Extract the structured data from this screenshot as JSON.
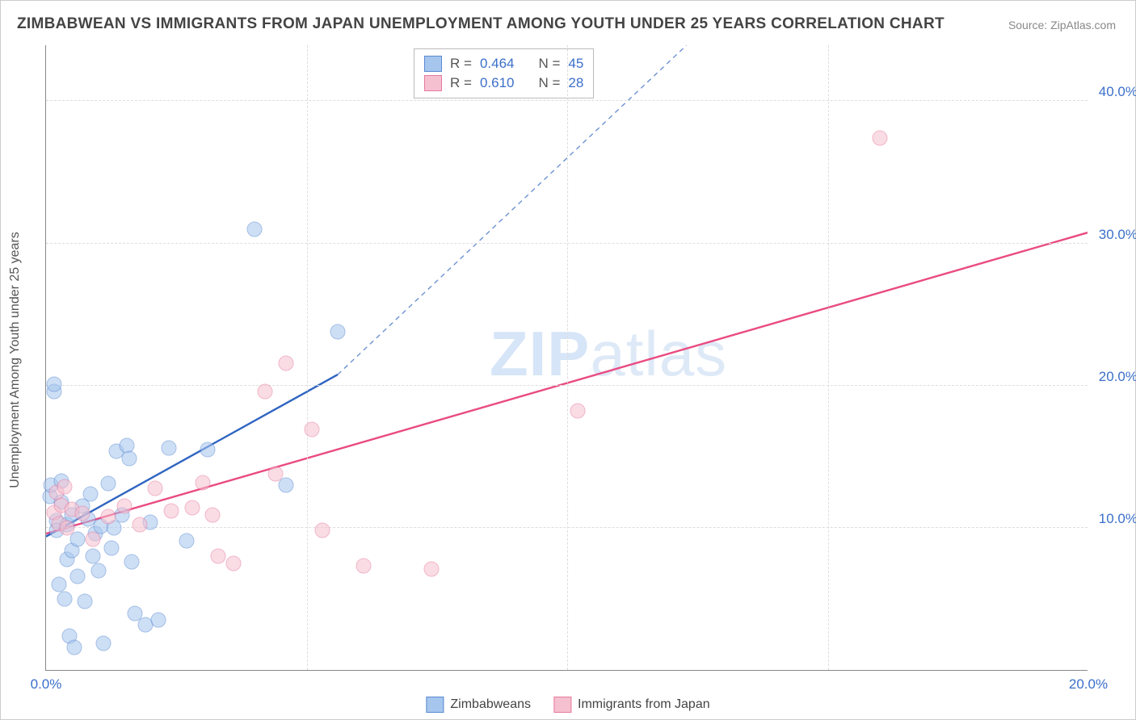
{
  "title": "ZIMBABWEAN VS IMMIGRANTS FROM JAPAN UNEMPLOYMENT AMONG YOUTH UNDER 25 YEARS CORRELATION CHART",
  "source_label": "Source: ZipAtlas.com",
  "y_axis_title": "Unemployment Among Youth under 25 years",
  "watermark": {
    "bold": "ZIP",
    "light": "atlas"
  },
  "chart": {
    "type": "scatter",
    "xlim": [
      0,
      20
    ],
    "ylim": [
      0,
      44
    ],
    "x_ticks": [
      {
        "v": 0,
        "l": "0.0%"
      },
      {
        "v": 20,
        "l": "20.0%"
      }
    ],
    "y_ticks": [
      {
        "v": 10,
        "l": "10.0%"
      },
      {
        "v": 20,
        "l": "20.0%"
      },
      {
        "v": 30,
        "l": "30.0%"
      },
      {
        "v": 40,
        "l": "40.0%"
      }
    ],
    "x_minor_gridlines": [
      5,
      10,
      15
    ],
    "background_color": "#ffffff",
    "grid_color": "#dddddd",
    "axis_color": "#888888",
    "tick_label_color": "#3b6fc9",
    "tick_fontsize": 17,
    "marker_radius": 9.5,
    "marker_opacity": 0.55,
    "series": [
      {
        "name": "Zimbabweans",
        "fill": "#a6c6ee",
        "stroke": "#5989d0",
        "R": "0.464",
        "N": "45",
        "trend": {
          "x1": 0,
          "y1": 9.4,
          "x2": 5.6,
          "y2": 20.8,
          "x2_ext": 12.3,
          "y2_ext": 44,
          "color": "#2f64c0",
          "width": 2.4
        },
        "points": [
          [
            0.08,
            12.2
          ],
          [
            0.1,
            13.0
          ],
          [
            0.15,
            19.6
          ],
          [
            0.15,
            20.1
          ],
          [
            0.2,
            10.5
          ],
          [
            0.2,
            9.8
          ],
          [
            0.25,
            6.0
          ],
          [
            0.3,
            11.8
          ],
          [
            0.3,
            13.3
          ],
          [
            0.35,
            5.0
          ],
          [
            0.4,
            10.2
          ],
          [
            0.4,
            7.8
          ],
          [
            0.45,
            2.4
          ],
          [
            0.5,
            8.4
          ],
          [
            0.5,
            10.9
          ],
          [
            0.55,
            1.6
          ],
          [
            0.6,
            9.2
          ],
          [
            0.6,
            6.6
          ],
          [
            0.7,
            11.5
          ],
          [
            0.75,
            4.8
          ],
          [
            0.8,
            10.6
          ],
          [
            0.85,
            12.4
          ],
          [
            0.9,
            8.0
          ],
          [
            0.95,
            9.6
          ],
          [
            1.0,
            7.0
          ],
          [
            1.05,
            10.1
          ],
          [
            1.1,
            1.9
          ],
          [
            1.2,
            13.1
          ],
          [
            1.25,
            8.6
          ],
          [
            1.3,
            10.0
          ],
          [
            1.35,
            15.4
          ],
          [
            1.45,
            10.9
          ],
          [
            1.55,
            15.8
          ],
          [
            1.6,
            14.9
          ],
          [
            1.65,
            7.6
          ],
          [
            1.7,
            4.0
          ],
          [
            1.9,
            3.2
          ],
          [
            2.0,
            10.4
          ],
          [
            2.15,
            3.5
          ],
          [
            2.35,
            15.6
          ],
          [
            2.7,
            9.1
          ],
          [
            3.1,
            15.5
          ],
          [
            4.0,
            31.0
          ],
          [
            4.6,
            13.0
          ],
          [
            5.6,
            23.8
          ]
        ]
      },
      {
        "name": "Immigrants from Japan",
        "fill": "#f5c0cf",
        "stroke": "#e77aa0",
        "R": "0.610",
        "N": "28",
        "trend": {
          "x1": 0,
          "y1": 9.6,
          "x2": 20,
          "y2": 30.8,
          "color": "#e94b82",
          "width": 2.4
        },
        "points": [
          [
            0.15,
            11.1
          ],
          [
            0.2,
            12.5
          ],
          [
            0.25,
            10.3
          ],
          [
            0.3,
            11.6
          ],
          [
            0.35,
            12.9
          ],
          [
            0.4,
            10.0
          ],
          [
            0.5,
            11.3
          ],
          [
            0.7,
            11.0
          ],
          [
            0.9,
            9.2
          ],
          [
            1.2,
            10.8
          ],
          [
            1.5,
            11.5
          ],
          [
            1.8,
            10.2
          ],
          [
            2.1,
            12.8
          ],
          [
            2.4,
            11.2
          ],
          [
            2.8,
            11.4
          ],
          [
            3.0,
            13.2
          ],
          [
            3.2,
            10.9
          ],
          [
            3.3,
            8.0
          ],
          [
            3.6,
            7.5
          ],
          [
            4.2,
            19.6
          ],
          [
            4.4,
            13.8
          ],
          [
            4.6,
            21.6
          ],
          [
            5.1,
            16.9
          ],
          [
            5.3,
            9.8
          ],
          [
            6.1,
            7.3
          ],
          [
            7.4,
            7.1
          ],
          [
            10.2,
            18.2
          ],
          [
            16.0,
            37.4
          ]
        ]
      }
    ]
  },
  "legend_top": {
    "rows": [
      {
        "swatch": "blue",
        "R_label": "R",
        "R_val": "0.464",
        "N_label": "N",
        "N_val": "45"
      },
      {
        "swatch": "pink",
        "R_label": "R",
        "R_val": "0.610",
        "N_label": "N",
        "N_val": "28"
      }
    ]
  },
  "legend_bottom": [
    {
      "swatch": "blue",
      "label": "Zimbabweans"
    },
    {
      "swatch": "pink",
      "label": "Immigrants from Japan"
    }
  ]
}
